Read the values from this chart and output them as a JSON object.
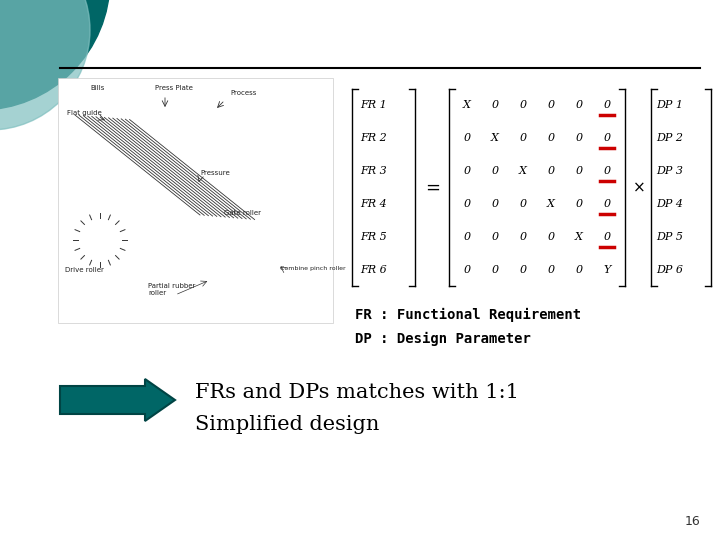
{
  "bg_color": "#ffffff",
  "teal_dark_color": "#006666",
  "teal_light_color": "#7fbfbf",
  "line_color": "#000000",
  "fr_labels": [
    "FR 1",
    "FR 2",
    "FR 3",
    "FR 4",
    "FR 5",
    "FR 6"
  ],
  "dp_labels": [
    "DP 1",
    "DP 2",
    "DP 3",
    "DP 4",
    "DP 5",
    "DP 6"
  ],
  "matrix": [
    [
      "X",
      "0",
      "0",
      "0",
      "0",
      "0"
    ],
    [
      "0",
      "X",
      "0",
      "0",
      "0",
      "0"
    ],
    [
      "0",
      "0",
      "X",
      "0",
      "0",
      "0"
    ],
    [
      "0",
      "0",
      "0",
      "X",
      "0",
      "0"
    ],
    [
      "0",
      "0",
      "0",
      "0",
      "X",
      "0"
    ],
    [
      "0",
      "0",
      "0",
      "0",
      "0",
      "Y"
    ]
  ],
  "red_underline_col": 5,
  "red_underline_rows": [
    0,
    1,
    2,
    3,
    4
  ],
  "fr_text": "FR : Functional Requirement",
  "dp_text": "DP : Design Parameter",
  "arrow_text_line1": "FRs and DPs matches with 1:1",
  "arrow_text_line2": "Simplified design",
  "page_number": "16",
  "matrix_font_size": 8,
  "label_font_size": 8,
  "fr_dp_font_size": 10,
  "arrow_text_font_size": 15
}
